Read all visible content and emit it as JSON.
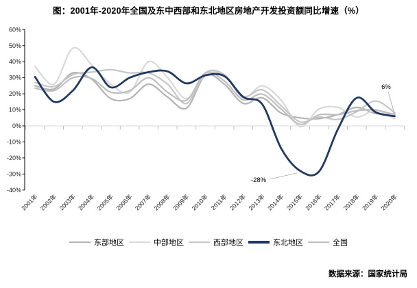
{
  "title": "图：2001年-2020年全国及东中西部和东北地区房地产开发投资额同比增速（%）",
  "source": "数据来源：国家统计局",
  "chart_data": {
    "type": "line",
    "title": "图：2001年-2020年全国及东中西部和东北地区房地产开发投资额同比增速（%）",
    "x": [
      "2001年",
      "2002年",
      "2003年",
      "2004年",
      "2005年",
      "2006年",
      "2007年",
      "2008年",
      "2009年",
      "2010年",
      "2011年",
      "2012年",
      "2013年",
      "2014年",
      "2015年",
      "2016年",
      "2017年",
      "2018年",
      "2019年",
      "2020年"
    ],
    "y_ticks": [
      "60%",
      "50%",
      "40%",
      "30%",
      "20%",
      "10%",
      "0%",
      "-10%",
      "-20%",
      "-30%",
      "-40%"
    ],
    "ylim": [
      -40,
      60
    ],
    "unit": "%",
    "grid": "zero-line-only",
    "legend_position": "bottom",
    "series": [
      {
        "id": "east",
        "name": "东部地区",
        "color": "#b3b3b3",
        "thick": false,
        "values": [
          25,
          23,
          33,
          29,
          17,
          17,
          26,
          18,
          11,
          31.5,
          26,
          14,
          17.5,
          8,
          5,
          4.5,
          7,
          11.5,
          7.7,
          7.6
        ]
      },
      {
        "id": "central",
        "name": "中部地区",
        "color": "#d9d9d9",
        "thick": false,
        "values": [
          37,
          26,
          48.5,
          38,
          26,
          21,
          40,
          30,
          17,
          32,
          31.5,
          17.5,
          25,
          16,
          -0.5,
          10.5,
          11.5,
          5.5,
          9.6,
          4.4
        ]
      },
      {
        "id": "west",
        "name": "西部地区",
        "color": "#c6c6c6",
        "thick": false,
        "values": [
          27,
          24.5,
          32,
          33.5,
          35,
          33,
          33,
          26,
          14,
          33,
          32,
          18.5,
          22.5,
          12.5,
          2.5,
          5.5,
          4,
          8.9,
          15.5,
          8.2
        ]
      },
      {
        "id": "northeast",
        "name": "东北地区",
        "color": "#1f3864",
        "thick": true,
        "values": [
          30.5,
          15,
          22,
          36.5,
          24,
          30,
          33.5,
          34,
          26.5,
          31.5,
          31,
          18,
          13.5,
          -14,
          -28,
          -28.5,
          -2,
          17.5,
          8.5,
          6
        ]
      },
      {
        "id": "national",
        "name": "全国",
        "color": "#bfbfbf",
        "thick": false,
        "values": [
          23.5,
          22,
          30,
          29.5,
          21,
          22,
          30,
          21,
          16,
          33,
          28,
          16.2,
          19.8,
          10.5,
          1,
          6.9,
          7,
          9.5,
          9.9,
          7
        ]
      }
    ],
    "annotations": [
      {
        "text": "-28%",
        "year": "2015年",
        "value": -28
      },
      {
        "text": "6%",
        "year": "2020年",
        "value": 6
      }
    ]
  }
}
